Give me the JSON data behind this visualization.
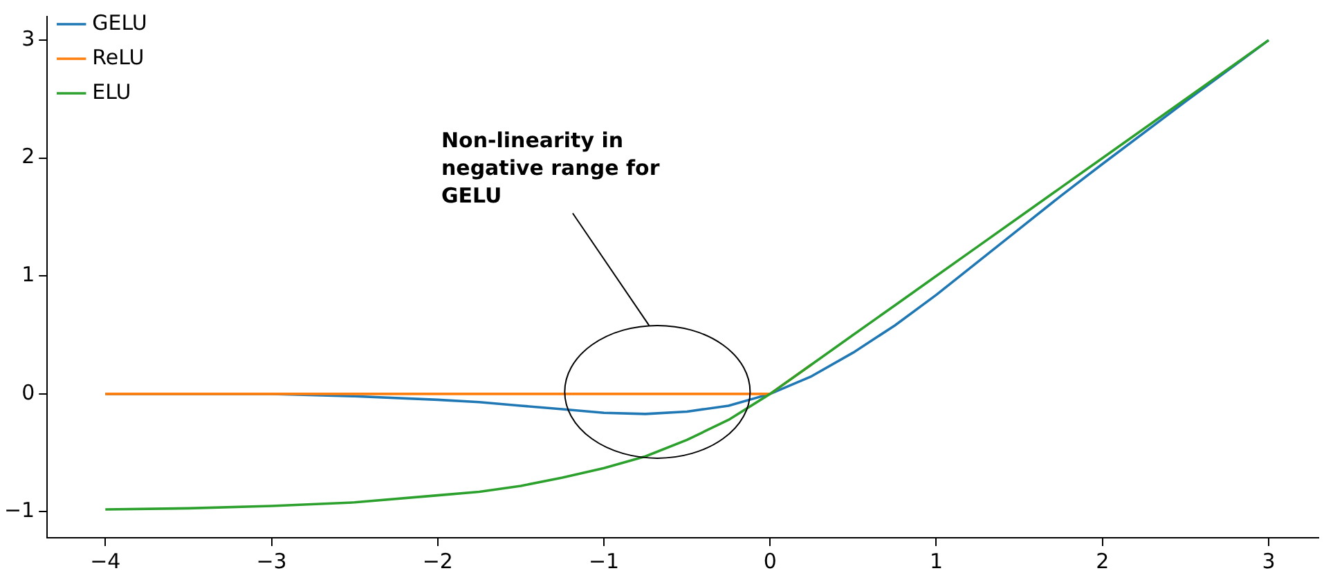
{
  "chart_data": {
    "type": "line",
    "x": [
      -4,
      -3.5,
      -3,
      -2.5,
      -2,
      -1.75,
      -1.5,
      -1.25,
      -1,
      -0.75,
      -0.5,
      -0.25,
      0,
      0.25,
      0.5,
      0.75,
      1,
      1.25,
      1.5,
      1.75,
      2,
      2.5,
      3
    ],
    "series": [
      {
        "name": "GELU",
        "color": "#1f77b4",
        "values": [
          0,
          0,
          0,
          -0.02,
          -0.05,
          -0.07,
          -0.1,
          -0.13,
          -0.16,
          -0.17,
          -0.15,
          -0.1,
          0,
          0.15,
          0.35,
          0.58,
          0.84,
          1.12,
          1.4,
          1.68,
          1.95,
          2.48,
          3
        ]
      },
      {
        "name": "ReLU",
        "color": "#ff7f0e",
        "values": [
          0,
          0,
          0,
          0,
          0,
          0,
          0,
          0,
          0,
          0,
          0,
          0,
          0,
          0.25,
          null,
          null,
          null,
          null,
          null,
          null,
          null,
          null,
          null
        ]
      },
      {
        "name": "ELU",
        "color": "#2ca02c",
        "values": [
          -0.98,
          -0.97,
          -0.95,
          -0.92,
          -0.86,
          -0.83,
          -0.78,
          -0.71,
          -0.63,
          -0.53,
          -0.39,
          -0.22,
          0,
          0.25,
          0.5,
          0.75,
          1,
          1.25,
          1.5,
          1.75,
          2,
          2.5,
          3
        ]
      }
    ],
    "xlim": [
      -4.35,
      3.3
    ],
    "ylim": [
      -1.22,
      3.2
    ],
    "xticks": [
      -4,
      -3,
      -2,
      -1,
      0,
      1,
      2,
      3
    ],
    "yticks": [
      -1,
      0,
      1,
      2,
      3
    ],
    "grid": false,
    "legend": "top left",
    "marker": "none",
    "line_style": "solid",
    "annotations": [
      "Non-linearity in\nnegative range for\nGELU"
    ]
  }
}
